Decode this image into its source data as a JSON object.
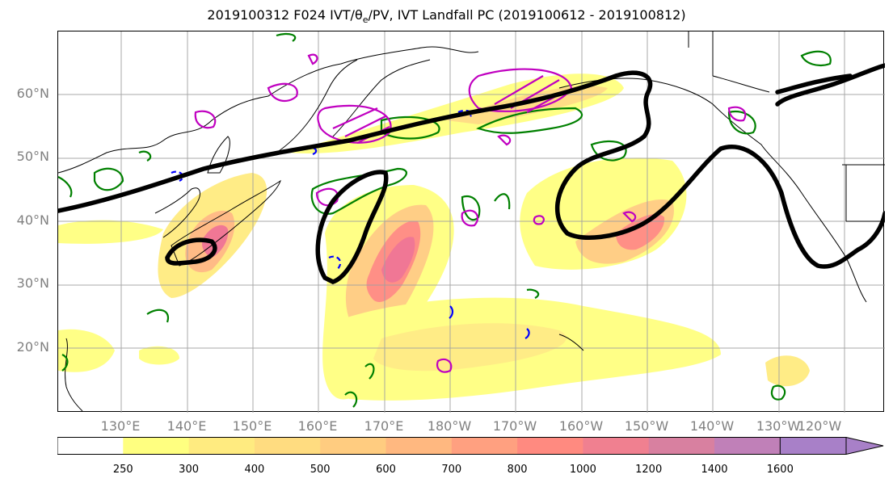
{
  "title_main": "2019100312 F024 IVT/",
  "title_theta": "θ",
  "title_sub": "e",
  "title_rest": "/PV, IVT Landfall PC (2019100612 - 2019100812)",
  "map": {
    "lat_labels": [
      "60°N",
      "50°N",
      "40°N",
      "30°N",
      "20°N"
    ],
    "lon_labels": [
      "130°E",
      "140°E",
      "150°E",
      "160°E",
      "170°E",
      "180°W",
      "170°W",
      "160°W",
      "150°W",
      "140°W",
      "130°W",
      "120°W"
    ]
  },
  "colorbar": {
    "ticks": [
      "250",
      "300",
      "400",
      "500",
      "600",
      "700",
      "800",
      "1000",
      "1200",
      "1400",
      "1600"
    ],
    "colors": [
      "#ffffff",
      "#ffff80",
      "#ffeb80",
      "#ffdc80",
      "#ffcc80",
      "#ffb880",
      "#ffa080",
      "#ff8a80",
      "#f08090",
      "#d880a0",
      "#c080b8",
      "#a880c8"
    ]
  },
  "contour_colors": {
    "ivt_fill_low": "#ffff80",
    "ivt_fill_high": "#f07090",
    "pc_line": "#000000",
    "green": "#008000",
    "blue": "#0000ff",
    "magenta": "#c000c0"
  }
}
